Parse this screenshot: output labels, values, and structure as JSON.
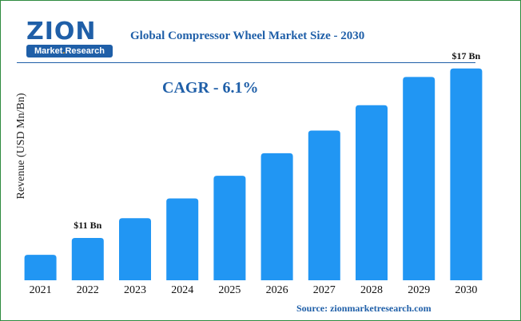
{
  "logo": {
    "word": "ZION",
    "sub_part1": "Market",
    "sub_sep": ".",
    "sub_part2": "Research"
  },
  "colors": {
    "bar": "#2196f3",
    "accent": "#1f5fa8",
    "frame": "#2e8b3f"
  },
  "annotation": {
    "cagr": "CAGR - 6.1%"
  },
  "source": "Source: zionmarketresearch.com",
  "chart_data": {
    "type": "bar",
    "title": "Global Compressor Wheel Market Size - 2030",
    "ylabel": "Revenue (USD Mn/Bn)",
    "xlabel": "",
    "categories": [
      "2021",
      "2022",
      "2023",
      "2024",
      "2025",
      "2026",
      "2027",
      "2028",
      "2029",
      "2030"
    ],
    "values": [
      10.4,
      11,
      11.7,
      12.4,
      13.2,
      14,
      14.8,
      15.7,
      16.7,
      17
    ],
    "ylim": [
      9.5,
      17.7
    ],
    "grid": false,
    "data_labels": [
      {
        "index": 1,
        "text": "$11 Bn"
      },
      {
        "index": 9,
        "text": "$17 Bn"
      }
    ]
  }
}
